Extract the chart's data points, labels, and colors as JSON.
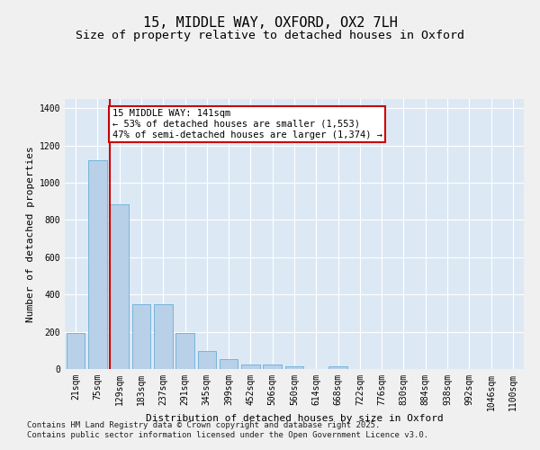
{
  "title_line1": "15, MIDDLE WAY, OXFORD, OX2 7LH",
  "title_line2": "Size of property relative to detached houses in Oxford",
  "xlabel": "Distribution of detached houses by size in Oxford",
  "ylabel": "Number of detached properties",
  "categories": [
    "21sqm",
    "75sqm",
    "129sqm",
    "183sqm",
    "237sqm",
    "291sqm",
    "345sqm",
    "399sqm",
    "452sqm",
    "506sqm",
    "560sqm",
    "614sqm",
    "668sqm",
    "722sqm",
    "776sqm",
    "830sqm",
    "884sqm",
    "938sqm",
    "992sqm",
    "1046sqm",
    "1100sqm"
  ],
  "values": [
    195,
    1120,
    885,
    350,
    350,
    195,
    95,
    55,
    22,
    22,
    15,
    0,
    15,
    0,
    0,
    0,
    0,
    0,
    0,
    0,
    0
  ],
  "bar_color": "#b8d0e8",
  "bar_edge_color": "#6baed6",
  "vline_color": "#cc0000",
  "annotation_text": "15 MIDDLE WAY: 141sqm\n← 53% of detached houses are smaller (1,553)\n47% of semi-detached houses are larger (1,374) →",
  "annotation_box_color": "#cc0000",
  "ylim": [
    0,
    1450
  ],
  "yticks": [
    0,
    200,
    400,
    600,
    800,
    1000,
    1200,
    1400
  ],
  "background_color": "#dce9f5",
  "grid_color": "#ffffff",
  "fig_background": "#f0f0f0",
  "footer_line1": "Contains HM Land Registry data © Crown copyright and database right 2025.",
  "footer_line2": "Contains public sector information licensed under the Open Government Licence v3.0.",
  "title_fontsize": 11,
  "subtitle_fontsize": 9.5,
  "axis_label_fontsize": 8,
  "tick_fontsize": 7,
  "annotation_fontsize": 7.5,
  "footer_fontsize": 6.5
}
